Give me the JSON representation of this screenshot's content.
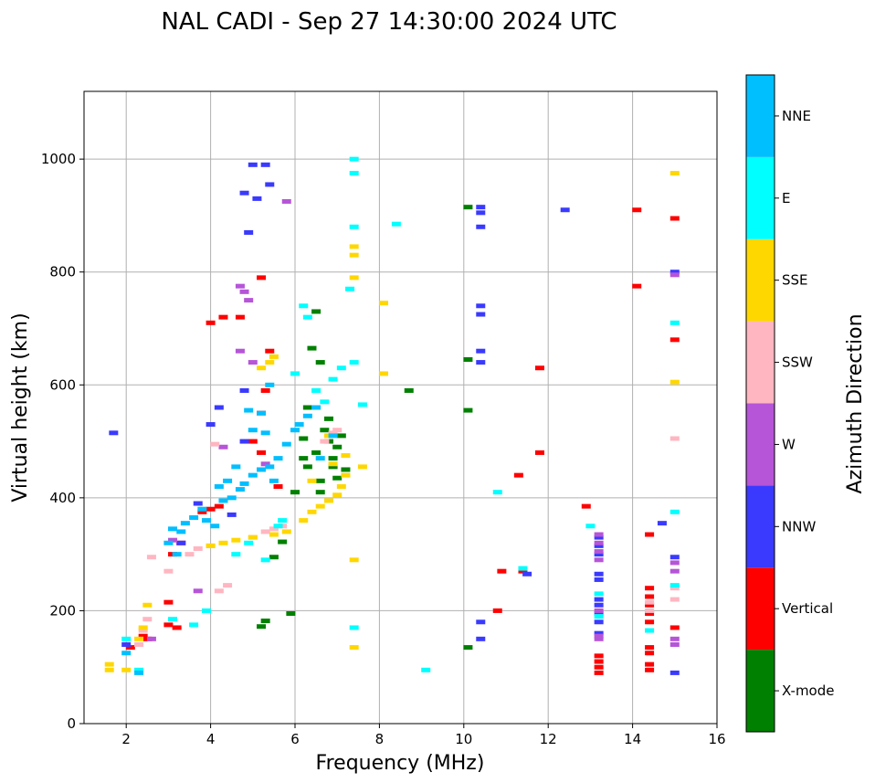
{
  "chart_data": {
    "type": "scatter",
    "title": "NAL CADI - Sep 27 14:30:00 2024 UTC",
    "xlabel": "Frequency (MHz)",
    "ylabel": "Virtual height (km)",
    "xlim": [
      1,
      16
    ],
    "ylim": [
      0,
      1120
    ],
    "xticks": [
      2,
      4,
      6,
      8,
      10,
      12,
      14,
      16
    ],
    "yticks": [
      0,
      200,
      400,
      600,
      800,
      1000
    ],
    "grid": true,
    "colorbar": {
      "label": "Azimuth Direction",
      "categories": [
        {
          "name": "X-mode",
          "color": "#008000"
        },
        {
          "name": "Vertical",
          "color": "#ff0000"
        },
        {
          "name": "NNW",
          "color": "#3a3aff"
        },
        {
          "name": "W",
          "color": "#b655d8"
        },
        {
          "name": "SSW",
          "color": "#ffb6c1"
        },
        {
          "name": "SSE",
          "color": "#ffd700"
        },
        {
          "name": "E",
          "color": "#00ffff"
        },
        {
          "name": "NNE",
          "color": "#00bfff"
        }
      ]
    },
    "series": [
      {
        "name": "X-mode",
        "points": [
          [
            5.2,
            172
          ],
          [
            5.3,
            182
          ],
          [
            5.5,
            295
          ],
          [
            5.7,
            322
          ],
          [
            6.0,
            410
          ],
          [
            6.2,
            505
          ],
          [
            6.3,
            455
          ],
          [
            6.4,
            665
          ],
          [
            6.5,
            480
          ],
          [
            6.6,
            430
          ],
          [
            6.7,
            520
          ],
          [
            6.8,
            500
          ],
          [
            6.9,
            470
          ],
          [
            7.0,
            490
          ],
          [
            7.1,
            510
          ],
          [
            7.2,
            450
          ],
          [
            6.5,
            730
          ],
          [
            6.6,
            640
          ],
          [
            8.7,
            590
          ],
          [
            10.1,
            135
          ],
          [
            10.1,
            555
          ],
          [
            10.1,
            645
          ],
          [
            10.1,
            915
          ],
          [
            6.3,
            560
          ],
          [
            6.9,
            455
          ],
          [
            5.9,
            195
          ],
          [
            6.6,
            410
          ],
          [
            7.0,
            435
          ],
          [
            6.2,
            470
          ],
          [
            6.8,
            540
          ]
        ]
      },
      {
        "name": "Vertical",
        "points": [
          [
            2.1,
            135
          ],
          [
            2.4,
            155
          ],
          [
            2.5,
            150
          ],
          [
            3.0,
            175
          ],
          [
            3.2,
            170
          ],
          [
            3.0,
            215
          ],
          [
            3.1,
            300
          ],
          [
            3.3,
            320
          ],
          [
            3.8,
            375
          ],
          [
            4.0,
            380
          ],
          [
            4.2,
            385
          ],
          [
            4.3,
            720
          ],
          [
            4.0,
            710
          ],
          [
            5.2,
            790
          ],
          [
            5.2,
            550
          ],
          [
            5.4,
            660
          ],
          [
            5.0,
            500
          ],
          [
            5.2,
            480
          ],
          [
            5.6,
            420
          ],
          [
            5.3,
            590
          ],
          [
            10.8,
            200
          ],
          [
            10.9,
            270
          ],
          [
            11.3,
            440
          ],
          [
            11.4,
            270
          ],
          [
            11.8,
            480
          ],
          [
            11.8,
            630
          ],
          [
            12.9,
            385
          ],
          [
            13.2,
            90
          ],
          [
            13.2,
            100
          ],
          [
            13.2,
            110
          ],
          [
            13.2,
            120
          ],
          [
            14.1,
            910
          ],
          [
            14.1,
            775
          ],
          [
            14.4,
            95
          ],
          [
            14.4,
            105
          ],
          [
            14.4,
            125
          ],
          [
            14.4,
            135
          ],
          [
            14.4,
            180
          ],
          [
            14.4,
            195
          ],
          [
            14.4,
            210
          ],
          [
            14.4,
            225
          ],
          [
            14.4,
            240
          ],
          [
            14.4,
            335
          ],
          [
            15.0,
            895
          ],
          [
            15.0,
            680
          ],
          [
            15.0,
            170
          ],
          [
            4.7,
            720
          ]
        ]
      },
      {
        "name": "NNW",
        "points": [
          [
            1.7,
            515
          ],
          [
            2.0,
            140
          ],
          [
            3.3,
            320
          ],
          [
            3.7,
            390
          ],
          [
            4.5,
            370
          ],
          [
            4.8,
            500
          ],
          [
            4.8,
            590
          ],
          [
            4.8,
            940
          ],
          [
            5.0,
            990
          ],
          [
            5.3,
            990
          ],
          [
            5.1,
            930
          ],
          [
            5.4,
            955
          ],
          [
            4.9,
            870
          ],
          [
            10.4,
            150
          ],
          [
            10.4,
            180
          ],
          [
            10.4,
            640
          ],
          [
            10.4,
            660
          ],
          [
            10.4,
            725
          ],
          [
            10.4,
            740
          ],
          [
            10.4,
            880
          ],
          [
            10.4,
            905
          ],
          [
            10.4,
            915
          ],
          [
            11.5,
            265
          ],
          [
            12.4,
            910
          ],
          [
            13.2,
            160
          ],
          [
            13.2,
            180
          ],
          [
            13.2,
            195
          ],
          [
            13.2,
            210
          ],
          [
            13.2,
            220
          ],
          [
            13.2,
            255
          ],
          [
            13.2,
            265
          ],
          [
            13.2,
            300
          ],
          [
            13.2,
            315
          ],
          [
            13.2,
            330
          ],
          [
            14.7,
            355
          ],
          [
            15.0,
            90
          ],
          [
            15.0,
            295
          ],
          [
            15.0,
            800
          ],
          [
            4.0,
            530
          ],
          [
            4.2,
            560
          ]
        ]
      },
      {
        "name": "W",
        "points": [
          [
            2.6,
            150
          ],
          [
            3.1,
            325
          ],
          [
            3.7,
            235
          ],
          [
            4.3,
            490
          ],
          [
            4.7,
            660
          ],
          [
            4.7,
            775
          ],
          [
            4.9,
            750
          ],
          [
            5.0,
            640
          ],
          [
            5.3,
            460
          ],
          [
            5.8,
            925
          ],
          [
            13.2,
            150
          ],
          [
            13.2,
            155
          ],
          [
            13.2,
            200
          ],
          [
            13.2,
            290
          ],
          [
            13.2,
            305
          ],
          [
            13.2,
            320
          ],
          [
            13.2,
            335
          ],
          [
            15.0,
            140
          ],
          [
            15.0,
            150
          ],
          [
            15.0,
            270
          ],
          [
            15.0,
            285
          ],
          [
            15.0,
            795
          ],
          [
            4.8,
            765
          ]
        ]
      },
      {
        "name": "SSW",
        "points": [
          [
            2.3,
            140
          ],
          [
            2.4,
            165
          ],
          [
            2.5,
            185
          ],
          [
            2.6,
            295
          ],
          [
            3.0,
            270
          ],
          [
            3.5,
            300
          ],
          [
            3.7,
            310
          ],
          [
            4.0,
            315
          ],
          [
            4.2,
            235
          ],
          [
            4.4,
            245
          ],
          [
            5.0,
            330
          ],
          [
            5.3,
            340
          ],
          [
            5.5,
            345
          ],
          [
            5.7,
            350
          ],
          [
            4.1,
            495
          ],
          [
            6.7,
            500
          ],
          [
            6.9,
            515
          ],
          [
            7.0,
            520
          ],
          [
            14.4,
            200
          ],
          [
            14.4,
            215
          ],
          [
            15.0,
            220
          ],
          [
            15.0,
            240
          ],
          [
            15.0,
            505
          ]
        ]
      },
      {
        "name": "SSE",
        "points": [
          [
            1.6,
            95
          ],
          [
            1.6,
            105
          ],
          [
            2.0,
            95
          ],
          [
            2.3,
            150
          ],
          [
            2.4,
            170
          ],
          [
            2.5,
            210
          ],
          [
            4.0,
            315
          ],
          [
            4.3,
            320
          ],
          [
            4.6,
            325
          ],
          [
            5.0,
            330
          ],
          [
            5.5,
            335
          ],
          [
            5.8,
            340
          ],
          [
            6.2,
            360
          ],
          [
            6.4,
            375
          ],
          [
            6.6,
            385
          ],
          [
            6.8,
            395
          ],
          [
            7.0,
            405
          ],
          [
            7.1,
            420
          ],
          [
            7.2,
            440
          ],
          [
            6.8,
            510
          ],
          [
            6.9,
            460
          ],
          [
            7.2,
            475
          ],
          [
            5.2,
            630
          ],
          [
            5.4,
            640
          ],
          [
            5.5,
            650
          ],
          [
            7.4,
            290
          ],
          [
            7.4,
            135
          ],
          [
            7.4,
            790
          ],
          [
            7.4,
            830
          ],
          [
            7.4,
            845
          ],
          [
            8.1,
            620
          ],
          [
            8.1,
            745
          ],
          [
            15.0,
            605
          ],
          [
            15.0,
            975
          ],
          [
            7.6,
            455
          ],
          [
            6.4,
            430
          ]
        ]
      },
      {
        "name": "E",
        "points": [
          [
            2.0,
            150
          ],
          [
            2.3,
            95
          ],
          [
            3.1,
            185
          ],
          [
            3.6,
            175
          ],
          [
            3.9,
            200
          ],
          [
            4.6,
            300
          ],
          [
            4.9,
            320
          ],
          [
            5.3,
            290
          ],
          [
            5.7,
            360
          ],
          [
            6.2,
            740
          ],
          [
            6.0,
            620
          ],
          [
            6.5,
            590
          ],
          [
            6.7,
            570
          ],
          [
            6.9,
            610
          ],
          [
            7.1,
            630
          ],
          [
            7.4,
            170
          ],
          [
            7.4,
            640
          ],
          [
            7.4,
            880
          ],
          [
            7.4,
            975
          ],
          [
            7.4,
            1000
          ],
          [
            7.3,
            770
          ],
          [
            7.6,
            565
          ],
          [
            8.4,
            885
          ],
          [
            9.1,
            95
          ],
          [
            10.8,
            410
          ],
          [
            11.4,
            275
          ],
          [
            13.0,
            350
          ],
          [
            13.2,
            190
          ],
          [
            13.2,
            230
          ],
          [
            14.4,
            165
          ],
          [
            15.0,
            245
          ],
          [
            15.0,
            375
          ],
          [
            15.0,
            710
          ],
          [
            6.3,
            720
          ],
          [
            5.6,
            350
          ]
        ]
      },
      {
        "name": "NNE",
        "points": [
          [
            2.0,
            125
          ],
          [
            2.3,
            90
          ],
          [
            3.0,
            320
          ],
          [
            3.1,
            345
          ],
          [
            3.3,
            340
          ],
          [
            3.4,
            355
          ],
          [
            3.6,
            365
          ],
          [
            3.8,
            380
          ],
          [
            3.9,
            360
          ],
          [
            4.1,
            350
          ],
          [
            4.3,
            395
          ],
          [
            4.5,
            400
          ],
          [
            4.7,
            415
          ],
          [
            4.8,
            425
          ],
          [
            5.0,
            440
          ],
          [
            5.2,
            450
          ],
          [
            5.4,
            455
          ],
          [
            5.5,
            430
          ],
          [
            5.6,
            470
          ],
          [
            5.8,
            495
          ],
          [
            6.0,
            520
          ],
          [
            6.1,
            530
          ],
          [
            6.3,
            545
          ],
          [
            6.5,
            560
          ],
          [
            6.6,
            470
          ],
          [
            5.2,
            550
          ],
          [
            5.0,
            520
          ],
          [
            4.6,
            455
          ],
          [
            4.4,
            430
          ],
          [
            4.2,
            420
          ],
          [
            5.4,
            600
          ],
          [
            5.3,
            515
          ],
          [
            4.9,
            555
          ],
          [
            6.9,
            510
          ],
          [
            3.2,
            300
          ]
        ]
      }
    ]
  }
}
